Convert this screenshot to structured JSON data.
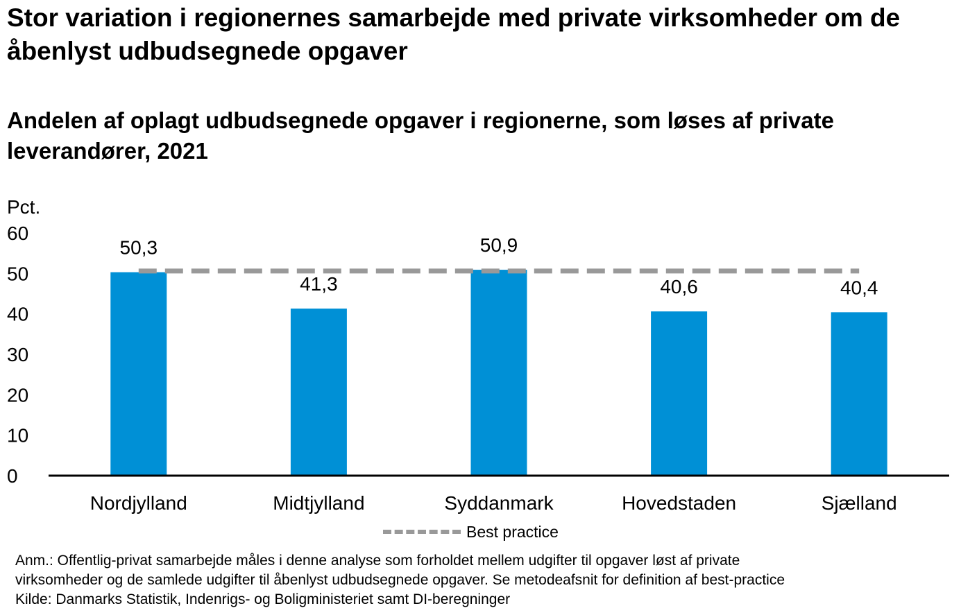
{
  "title": "Stor variation i regionernes samarbejde med private virksomheder om de åbenlyst udbudsegnede opgaver",
  "subtitle": "Andelen af oplagt udbudsegnede opgaver i regionerne, som løses af private leverandører, 2021",
  "unit_label": "Pct.",
  "legend_label": "Best practice",
  "note_line1": "Anm.: Offentlig-privat samarbejde måles i denne analyse som forholdet mellem udgifter til opgaver løst af private",
  "note_line2": "virksomheder og de samlede udgifter til åbenlyst udbudsegnede opgaver. Se metodeafsnit for definition af best-practice",
  "source": "Kilde: Danmarks Statistik, Indenrigs- og Boligministeriet samt DI-beregninger",
  "colors": {
    "bar": "#0090D6",
    "best_practice": "#999999",
    "axis": "#000000"
  },
  "chart_data": {
    "type": "bar",
    "categories": [
      "Nordjylland",
      "Midtjylland",
      "Syddanmark",
      "Hovedstaden",
      "Sjælland"
    ],
    "values": [
      50.3,
      41.3,
      50.9,
      40.6,
      40.4
    ],
    "data_labels": [
      "50,3",
      "41,3",
      "50,9",
      "40,6",
      "40,4"
    ],
    "best_practice": 50.6,
    "ylabel": "Pct.",
    "ylim": [
      0,
      60
    ],
    "yticks": [
      0,
      10,
      20,
      30,
      40,
      50,
      60
    ],
    "grid": false,
    "legend_position": "bottom"
  }
}
